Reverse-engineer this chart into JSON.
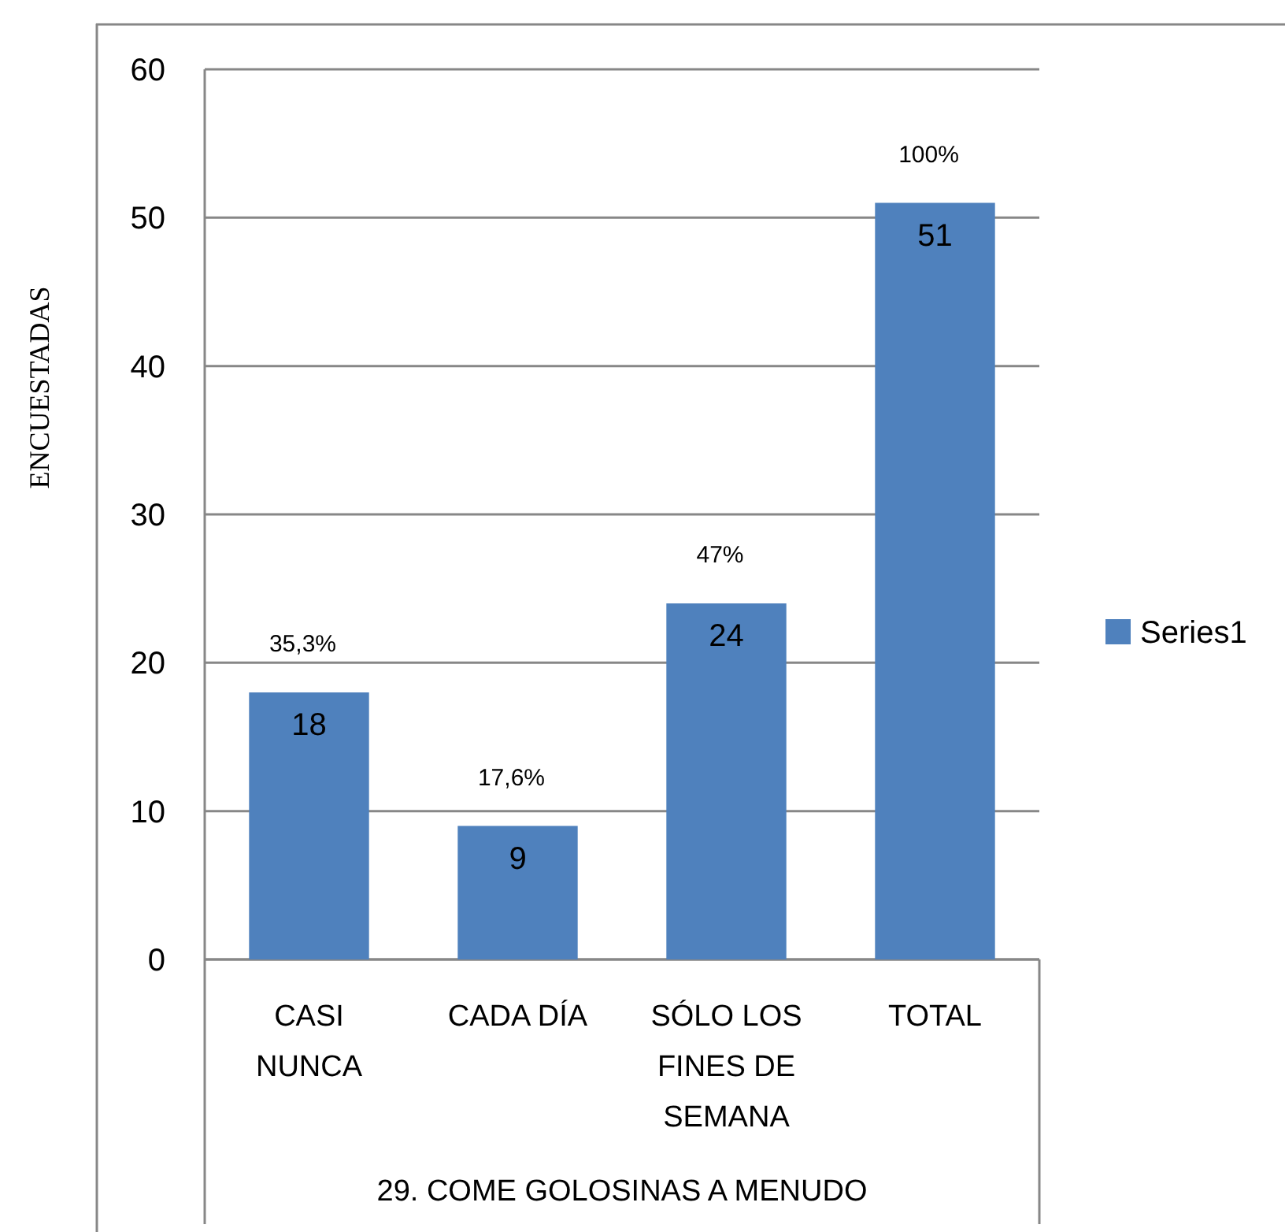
{
  "chart_data": {
    "type": "bar",
    "xlabel": "29. COME GOLOSINAS A MENUDO",
    "ylabel": "ENCUESTADAS",
    "categories": [
      "CASI NUNCA",
      "CADA DÍA",
      "SÓLO LOS FINES DE SEMANA",
      "TOTAL"
    ],
    "series": [
      {
        "name": "Series1",
        "color": "#4f81bd",
        "values": [
          18,
          9,
          24,
          51
        ]
      }
    ],
    "ylim": [
      0,
      60
    ],
    "yticks": [
      0,
      10,
      20,
      30,
      40,
      50,
      60
    ],
    "grid": "y",
    "legend": "right",
    "data_labels": true,
    "annotations": [
      {
        "text": "35,3%",
        "x": "CASI NUNCA",
        "y": 18
      },
      {
        "text": "17,6%",
        "x": "CADA DÍA",
        "y": 9
      },
      {
        "text": "47%",
        "x": "SÓLO LOS FINES DE SEMANA",
        "y": 24
      },
      {
        "text": "100%",
        "x": "TOTAL",
        "y": 51
      }
    ]
  }
}
